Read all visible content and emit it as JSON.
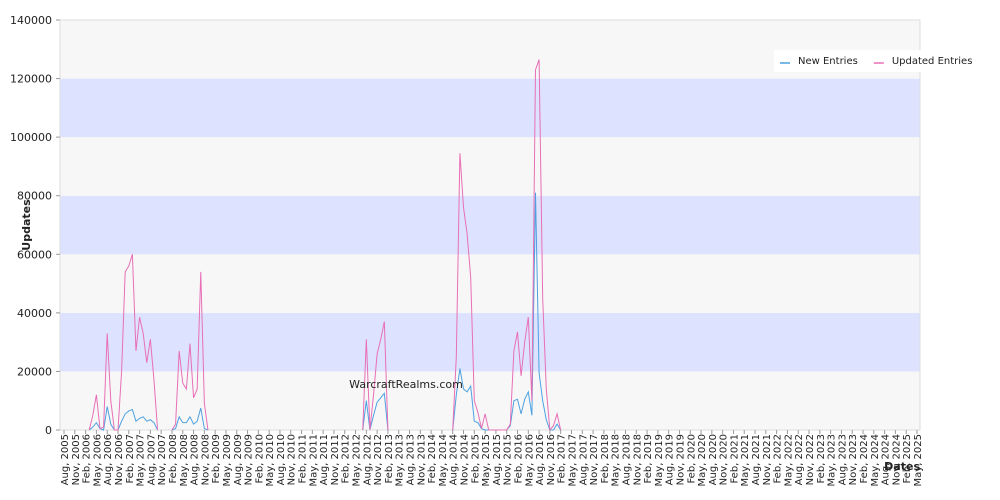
{
  "chart_data": {
    "type": "line",
    "watermark": "WarcraftRealms.com",
    "y_label": "Updates",
    "x_label": "Dates",
    "ylim": [
      0,
      140000
    ],
    "yticks": [
      0,
      20000,
      40000,
      60000,
      80000,
      100000,
      120000,
      140000
    ],
    "band_colors": [
      "#f7f7f7",
      "#dde3ff"
    ],
    "legend": "top-right",
    "categories": [
      "Aug, 2005",
      null,
      null,
      "Nov, 2005",
      null,
      null,
      "Feb, 2006",
      null,
      null,
      "May, 2006",
      null,
      null,
      "Aug, 2006",
      null,
      null,
      "Nov, 2006",
      null,
      null,
      "Feb, 2007",
      null,
      null,
      "May, 2007",
      null,
      null,
      "Aug, 2007",
      null,
      null,
      "Nov, 2007",
      null,
      null,
      "Feb, 2008",
      null,
      null,
      "May, 2008",
      null,
      null,
      "Aug, 2008",
      null,
      null,
      "Nov, 2008",
      null,
      null,
      "Feb, 2009",
      null,
      null,
      "May, 2009",
      null,
      null,
      "Aug, 2009",
      null,
      null,
      "Nov, 2009",
      null,
      null,
      "Feb, 2010",
      null,
      null,
      "May, 2010",
      null,
      null,
      "Aug, 2010",
      null,
      null,
      "Nov, 2010",
      null,
      null,
      "Feb, 2011",
      null,
      null,
      "May, 2011",
      null,
      null,
      "Aug, 2011",
      null,
      null,
      "Nov, 2011",
      null,
      null,
      "Feb, 2012",
      null,
      null,
      "May, 2012",
      null,
      null,
      "Aug, 2012",
      null,
      null,
      "Nov, 2012",
      null,
      null,
      "Feb, 2013",
      null,
      null,
      "May, 2013",
      null,
      null,
      "Aug, 2013",
      null,
      null,
      "Nov, 2013",
      null,
      null,
      "Feb, 2014",
      null,
      null,
      "May, 2014",
      null,
      null,
      "Aug, 2014",
      null,
      null,
      "Nov, 2014",
      null,
      null,
      "Feb, 2015",
      null,
      null,
      "May, 2015",
      null,
      null,
      "Aug, 2015",
      null,
      null,
      "Nov, 2015",
      null,
      null,
      "Feb, 2016",
      null,
      null,
      "May, 2016",
      null,
      null,
      "Aug, 2016",
      null,
      null,
      "Nov, 2016",
      null,
      null,
      "Feb, 2017",
      null,
      null,
      "May, 2017",
      null,
      null,
      "Aug, 2017",
      null,
      null,
      "Nov, 2017",
      null,
      null,
      "Feb, 2018",
      null,
      null,
      "May, 2018",
      null,
      null,
      "Aug, 2018",
      null,
      null,
      "Nov, 2018",
      null,
      null,
      "Feb, 2019",
      null,
      null,
      "May, 2019",
      null,
      null,
      "Aug, 2019",
      null,
      null,
      "Nov, 2019",
      null,
      null,
      "Feb, 2020",
      null,
      null,
      "May, 2020",
      null,
      null,
      "Aug, 2020",
      null,
      null,
      "Nov, 2020",
      null,
      null,
      "Feb, 2021",
      null,
      null,
      "May, 2021",
      null,
      null,
      "Aug, 2021",
      null,
      null,
      "Nov, 2021",
      null,
      null,
      "Feb, 2022",
      null,
      null,
      "May, 2022",
      null,
      null,
      "Aug, 2022",
      null,
      null,
      "Nov, 2022",
      null,
      null,
      "Feb, 2023",
      null,
      null,
      "May, 2023",
      null,
      null,
      "Aug, 2023",
      null,
      null,
      "Nov, 2023",
      null,
      null,
      "Feb, 2024",
      null,
      null,
      "May, 2024",
      null,
      null,
      "Aug, 2024",
      null,
      null,
      "Nov, 2024",
      null,
      null,
      "Feb, 2025",
      null,
      null,
      "May, 2025"
    ],
    "series": [
      {
        "name": "New Entries",
        "color": "#4ea1e0",
        "values": [
          null,
          null,
          null,
          null,
          null,
          null,
          null,
          0,
          1000,
          2500,
          500,
          0,
          8000,
          2000,
          0,
          0,
          3000,
          5500,
          6500,
          7000,
          3000,
          4000,
          4500,
          3000,
          3500,
          2500,
          0,
          null,
          null,
          null,
          0,
          500,
          4500,
          2500,
          2500,
          4500,
          2000,
          3000,
          7500,
          500,
          0,
          null,
          null,
          null,
          null,
          null,
          null,
          null,
          null,
          null,
          null,
          null,
          null,
          null,
          null,
          null,
          null,
          null,
          null,
          null,
          null,
          null,
          null,
          null,
          null,
          null,
          null,
          null,
          null,
          null,
          null,
          null,
          null,
          null,
          null,
          null,
          null,
          null,
          null,
          null,
          null,
          null,
          null,
          0,
          10000,
          0,
          5000,
          9500,
          11000,
          12500,
          0,
          null,
          null,
          null,
          null,
          null,
          null,
          null,
          null,
          null,
          null,
          null,
          null,
          null,
          null,
          null,
          null,
          null,
          0,
          12000,
          21000,
          14000,
          13000,
          15000,
          3000,
          2500,
          500,
          0,
          0,
          0,
          0,
          0,
          0,
          0,
          1500,
          10000,
          10500,
          5500,
          10500,
          13000,
          5000,
          81000,
          19500,
          10000,
          3500,
          0,
          0,
          2000,
          0,
          null,
          null,
          null,
          null,
          null,
          null,
          null,
          null,
          null,
          null,
          null,
          null,
          null,
          null,
          null,
          null,
          null,
          null,
          null,
          null,
          null,
          null,
          null,
          null,
          null,
          null,
          null,
          null,
          null,
          null,
          null,
          null,
          null,
          null,
          null,
          null,
          null,
          null,
          null,
          null,
          null,
          null,
          null,
          null,
          null,
          null,
          null,
          null,
          null,
          null,
          null,
          null,
          null,
          null,
          null,
          null,
          null,
          null,
          null,
          null,
          null,
          null,
          null,
          null,
          null,
          null,
          null,
          null,
          null,
          null,
          null,
          null,
          null,
          null,
          null,
          null,
          null,
          null,
          null,
          null,
          null,
          null,
          null,
          null,
          null,
          null,
          null,
          null,
          null,
          null,
          null,
          null,
          null,
          null,
          null,
          null,
          null,
          null,
          null
        ]
      },
      {
        "name": "Updated Entries",
        "color": "#e86fb6",
        "values": [
          null,
          null,
          null,
          null,
          null,
          null,
          null,
          0,
          5000,
          12000,
          500,
          1000,
          33000,
          10000,
          0,
          0,
          20000,
          54000,
          56000,
          60000,
          27000,
          38500,
          33000,
          23000,
          31000,
          17000,
          0,
          null,
          null,
          null,
          0,
          2000,
          27000,
          16000,
          14000,
          29500,
          11000,
          14000,
          54000,
          9000,
          0,
          null,
          null,
          null,
          null,
          null,
          null,
          null,
          null,
          null,
          null,
          null,
          null,
          null,
          null,
          null,
          null,
          null,
          null,
          null,
          null,
          null,
          null,
          null,
          null,
          null,
          null,
          null,
          null,
          null,
          null,
          null,
          null,
          null,
          null,
          null,
          null,
          null,
          null,
          null,
          null,
          null,
          null,
          0,
          31000,
          0,
          12000,
          26000,
          31000,
          37000,
          0,
          null,
          null,
          null,
          null,
          null,
          null,
          null,
          null,
          null,
          null,
          null,
          null,
          null,
          null,
          null,
          null,
          null,
          0,
          25000,
          94500,
          76000,
          67000,
          52000,
          10000,
          6000,
          500,
          5500,
          0,
          0,
          0,
          0,
          0,
          0,
          2000,
          27000,
          33500,
          18500,
          30000,
          38500,
          10000,
          123000,
          126500,
          45000,
          14000,
          0,
          1500,
          5500,
          0,
          null,
          null,
          null,
          null,
          null,
          null,
          null,
          null,
          null,
          null,
          null,
          null,
          null,
          null,
          null,
          null,
          null,
          null,
          null,
          null,
          null,
          null,
          null,
          null,
          null,
          null,
          null,
          null,
          null,
          null,
          null,
          null,
          null,
          null,
          null,
          null,
          null,
          null,
          null,
          null,
          null,
          null,
          null,
          null,
          null,
          null,
          null,
          null,
          null,
          null,
          null,
          null,
          null,
          null,
          null,
          null,
          null,
          null,
          null,
          null,
          null,
          null,
          null,
          null,
          null,
          null,
          null,
          null,
          null,
          null,
          null,
          null,
          null,
          null,
          null,
          null,
          null,
          null,
          null,
          null,
          null,
          null,
          null,
          null,
          null,
          null,
          null,
          null,
          null,
          null,
          null,
          null,
          null,
          null,
          null,
          null,
          null,
          null,
          null
        ]
      }
    ]
  }
}
